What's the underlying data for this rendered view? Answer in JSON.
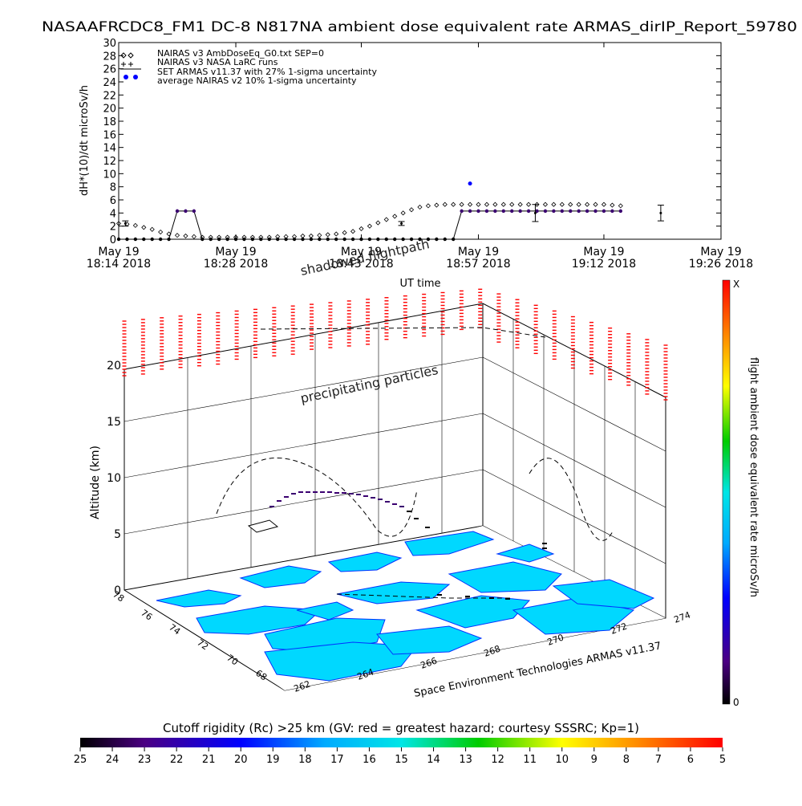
{
  "title": "NASAAFRCDC8_FM1 DC-8   N817NA ambient dose equivalent rate ARMAS_dirIP_Report_59780",
  "chart_data": [
    {
      "type": "scatter",
      "ylabel": "dH*(10)/dt microSv/h",
      "xlabel": "UT time",
      "ylim": [
        0,
        30
      ],
      "yticks": [
        0,
        2,
        4,
        6,
        8,
        10,
        12,
        14,
        16,
        18,
        20,
        22,
        24,
        26,
        28,
        30
      ],
      "x_range_minutes": [
        0,
        72
      ],
      "xticks": [
        {
          "m": 0,
          "line1": "May 19",
          "line2": "18:14 2018"
        },
        {
          "m": 14,
          "line1": "May 19",
          "line2": "18:28 2018"
        },
        {
          "m": 29,
          "line1": "May 19",
          "line2": "18:43 2018"
        },
        {
          "m": 43,
          "line1": "May 19",
          "line2": "18:57 2018"
        },
        {
          "m": 58,
          "line1": "May 19",
          "line2": "19:12 2018"
        },
        {
          "m": 72,
          "line1": "May 19",
          "line2": "19:26 2018"
        }
      ],
      "legend": [
        "NAIRAS v3 AmbDoseEq_G0.txt SEP=0",
        "NAIRAS v3 NASA LaRC runs",
        "SET ARMAS v11.37 with 27% 1-sigma uncertainty",
        "average NAIRAS v2 10% 1-sigma uncertainty"
      ],
      "series": [
        {
          "name": "NAIRAS v3 AmbDoseEq_G0.txt SEP=0",
          "marker": "diamond",
          "x": [
            0,
            1,
            2,
            3,
            4,
            5,
            6,
            7,
            8,
            9,
            10,
            11,
            12,
            13,
            14,
            15,
            16,
            17,
            18,
            19,
            20,
            21,
            22,
            23,
            24,
            25,
            26,
            27,
            28,
            29,
            30,
            31,
            32,
            33,
            34,
            35,
            36,
            37,
            38,
            39,
            40,
            41,
            42,
            43,
            44,
            45,
            46,
            47,
            48,
            49,
            50,
            51,
            52,
            53,
            54,
            55,
            56,
            57,
            58,
            59,
            60
          ],
          "values": [
            2.4,
            2.3,
            2.1,
            1.8,
            1.5,
            1.1,
            0.8,
            0.6,
            0.5,
            0.4,
            0.3,
            0.3,
            0.3,
            0.3,
            0.3,
            0.3,
            0.3,
            0.3,
            0.3,
            0.4,
            0.4,
            0.4,
            0.5,
            0.5,
            0.6,
            0.7,
            0.8,
            1.0,
            1.2,
            1.6,
            2.0,
            2.5,
            3.0,
            3.5,
            4.0,
            4.5,
            4.9,
            5.1,
            5.2,
            5.3,
            5.3,
            5.3,
            5.3,
            5.3,
            5.3,
            5.3,
            5.3,
            5.3,
            5.3,
            5.3,
            5.3,
            5.3,
            5.3,
            5.3,
            5.3,
            5.3,
            5.3,
            5.3,
            5.3,
            5.2,
            5.1
          ]
        },
        {
          "name": "SET ARMAS v11.37 with 27% 1-sigma uncertainty",
          "marker": "dot",
          "x": [
            0,
            1,
            2,
            3,
            4,
            5,
            6,
            7,
            8,
            9,
            10,
            11,
            12,
            13,
            14,
            15,
            16,
            17,
            18,
            19,
            20,
            21,
            22,
            23,
            24,
            25,
            26,
            27,
            28,
            29,
            30,
            31,
            32,
            33,
            34,
            35,
            36,
            37,
            38,
            39,
            40,
            41,
            42,
            43,
            44,
            45,
            46,
            47,
            48,
            49,
            50,
            51,
            52,
            53,
            54,
            55,
            56,
            57,
            58,
            59,
            60
          ],
          "values": [
            0,
            0,
            0,
            0,
            0,
            0,
            0,
            4.3,
            4.3,
            4.3,
            0,
            0,
            0,
            0,
            0,
            0,
            0,
            0,
            0,
            0,
            0,
            0,
            0,
            0,
            0,
            0,
            0,
            0,
            0,
            0,
            0,
            0,
            0,
            0,
            0,
            0,
            0,
            0,
            0,
            0,
            0,
            4.3,
            4.3,
            4.3,
            4.3,
            4.3,
            4.3,
            4.3,
            4.3,
            4.3,
            4.3,
            4.3,
            4.3,
            4.3,
            4.3,
            4.3,
            4.3,
            4.3,
            4.3,
            4.3,
            4.3
          ]
        },
        {
          "name": "average NAIRAS v2 10% 1-sigma uncertainty",
          "marker": "errorbar",
          "x": [
            0.8,
            33.8,
            49.8,
            64.8
          ],
          "values": [
            2.4,
            2.4,
            4.0,
            4.0
          ],
          "errors": [
            0.4,
            0.3,
            1.3,
            1.2
          ]
        }
      ]
    },
    {
      "type": "3d-trajectory",
      "zlabel": "Altitude (km)",
      "zticks": [
        0,
        5,
        10,
        15,
        20
      ],
      "lat_ticks": [
        68,
        70,
        72,
        74,
        76,
        78
      ],
      "lon_ticks": [
        262,
        264,
        266,
        268,
        270,
        272,
        274
      ],
      "annotations": [
        "shadowed flightpath",
        "precipitating particles"
      ],
      "credit": "Space Environment Technologies ARMAS v11.37",
      "colorbar_label": "flight ambient dose equivalent rate microSv/h",
      "colorbar_top": "X",
      "colorbar_bottom": "0"
    },
    {
      "type": "colorbar",
      "label": "Cutoff rigidity (Rc) >25 km (GV: red = greatest hazard; courtesy SSSRC; Kp=1)",
      "ticks": [
        25,
        24,
        23,
        22,
        21,
        20,
        19,
        18,
        17,
        16,
        15,
        14,
        13,
        12,
        11,
        10,
        9,
        8,
        7,
        6,
        5
      ]
    }
  ]
}
